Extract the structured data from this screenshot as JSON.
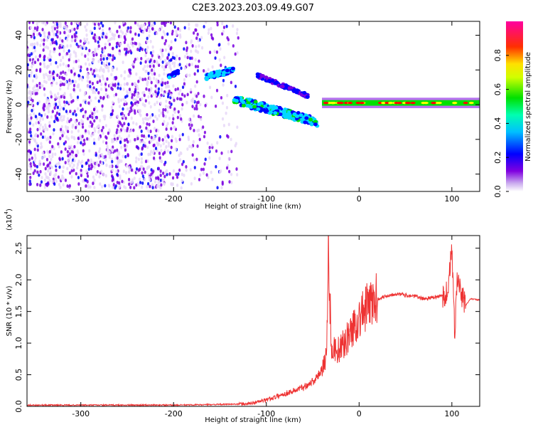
{
  "chart_data": [
    {
      "type": "heatmap",
      "title": "C2E3.2023.203.09.49.G07",
      "xlabel": "Height of straight line (km)",
      "ylabel": "Frequency (Hz)",
      "xlim": [
        -358,
        130
      ],
      "ylim": [
        -50,
        48
      ],
      "xticks": [
        -300,
        -200,
        -100,
        0,
        100
      ],
      "yticks": [
        -40,
        -20,
        0,
        20,
        40
      ],
      "colorbar": {
        "label": "Normalized spectral amplitude",
        "range": [
          0,
          1
        ],
        "ticks": [
          "0.0",
          "0.2",
          "0.4",
          "0.6",
          "0.8"
        ],
        "colormap": "rainbow",
        "colors": [
          "#e8d8f8",
          "#7a00e0",
          "#0000ff",
          "#00d8ff",
          "#00e000",
          "#ffff00",
          "#ff0000",
          "#ff00a0"
        ]
      },
      "features": [
        {
          "x": [
            -358,
            -140
          ],
          "freq": [
            -48,
            48
          ],
          "amplitude": 0.1,
          "kind": "broadband noise"
        },
        {
          "x": [
            -205,
            -195
          ],
          "freq": [
            16,
            19
          ],
          "amplitude": 0.35
        },
        {
          "x": [
            -165,
            -135
          ],
          "freq": [
            16,
            20
          ],
          "amplitude": 0.5
        },
        {
          "x": [
            -135,
            -45
          ],
          "freq_start": 3,
          "freq_end": -10,
          "amplitude": 0.55
        },
        {
          "x": [
            -110,
            -55
          ],
          "freq_start": 17,
          "freq_end": 5,
          "amplitude": 0.3
        },
        {
          "x": [
            -40,
            130
          ],
          "freq": [
            0,
            2
          ],
          "amplitude": 0.9
        }
      ]
    },
    {
      "type": "line",
      "xlabel": "Height of straight line (km)",
      "ylabel": "SNR (10 * v/v)",
      "y_multiplier": "(x10",
      "y_multiplier_exp": "4",
      "y_multiplier_close": ")",
      "xlim": [
        -358,
        130
      ],
      "ylim": [
        0,
        2.7
      ],
      "xticks": [
        -300,
        -200,
        -100,
        0,
        100
      ],
      "yticks": [
        "0.0",
        "0.5",
        "1.0",
        "1.5",
        "2.0",
        "2.5"
      ],
      "color": "#ee3333",
      "series": [
        {
          "x": [
            -358,
            -300,
            -250,
            -200,
            -150,
            -120,
            -100,
            -80,
            -60,
            -45,
            -35,
            -33,
            -30,
            -20,
            -10,
            0,
            10,
            20,
            30,
            40,
            50,
            60,
            70,
            80,
            90,
            95,
            100,
            103,
            106,
            110,
            115,
            120,
            130
          ],
          "y": [
            0.02,
            0.02,
            0.02,
            0.02,
            0.03,
            0.04,
            0.1,
            0.2,
            0.3,
            0.45,
            0.8,
            2.65,
            0.9,
            0.9,
            1.15,
            1.4,
            1.6,
            1.7,
            1.75,
            1.78,
            1.76,
            1.74,
            1.7,
            1.72,
            1.75,
            1.8,
            2.45,
            1.2,
            2.05,
            1.75,
            1.6,
            1.7,
            1.68
          ]
        }
      ]
    }
  ]
}
